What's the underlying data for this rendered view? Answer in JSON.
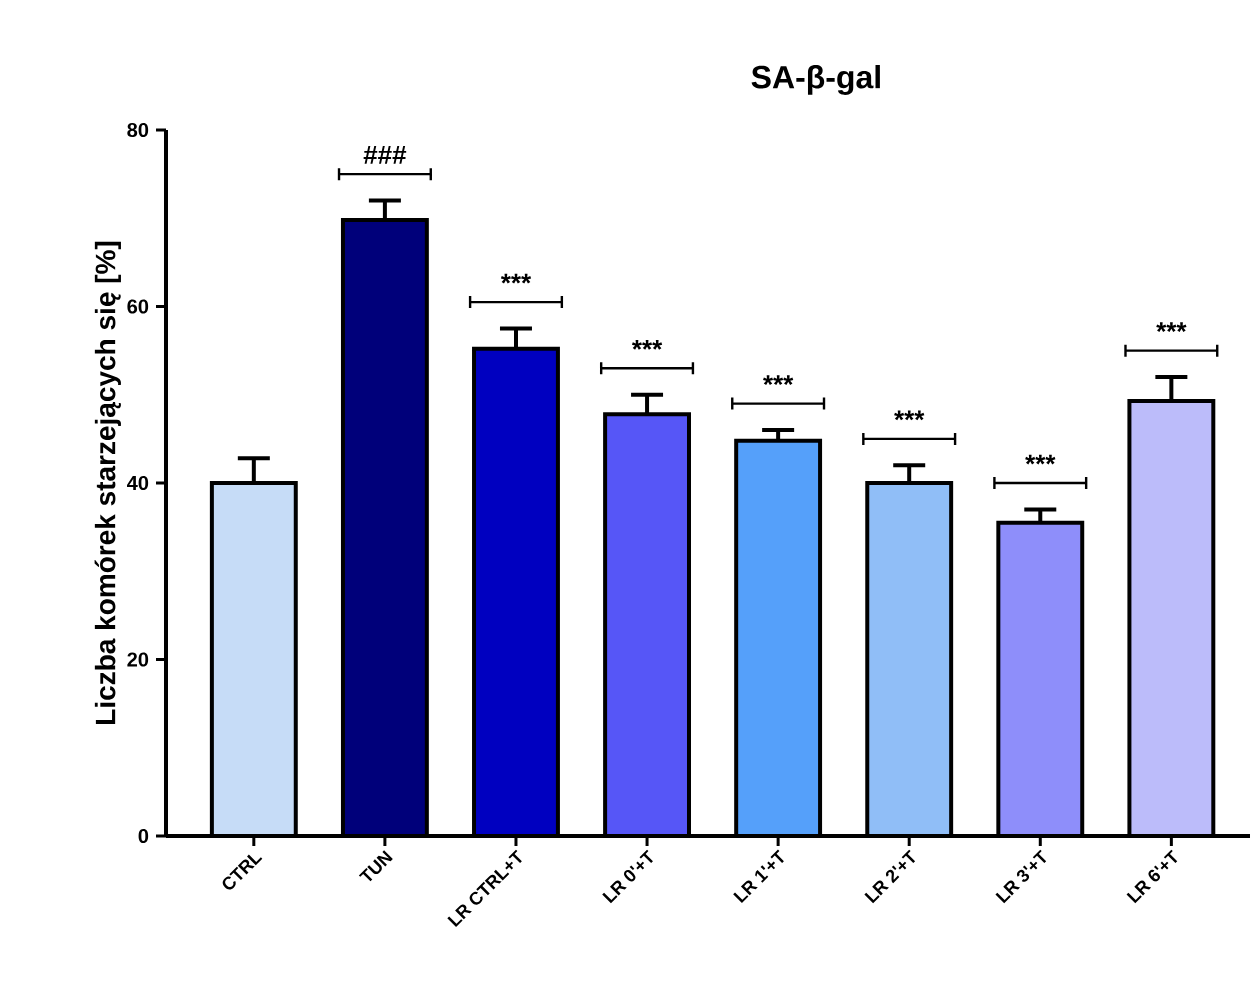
{
  "chart_data": {
    "type": "bar",
    "title": "SA-β-gal",
    "ylabel": "Liczba komórek starzejących się [%]",
    "categories": [
      "CTRL",
      "TUN",
      "LR CTRL+T",
      "LR 0'+T",
      "LR 1'+T",
      "LR 2'+T",
      "LR 3'+T",
      "LR 6'+T"
    ],
    "values": [
      40,
      69.8,
      55.2,
      47.8,
      44.8,
      40,
      35.5,
      49.3
    ],
    "errors": [
      [
        40,
        42.8
      ],
      [
        69.8,
        72
      ],
      [
        55.2,
        57.5
      ],
      [
        47.8,
        50
      ],
      [
        44.8,
        46
      ],
      [
        40,
        42
      ],
      [
        35.5,
        37
      ],
      [
        49.3,
        52
      ]
    ],
    "colors": [
      "#c6dcf7",
      "#00007a",
      "#0000c0",
      "#5656f7",
      "#55a0fa",
      "#90bef7",
      "#8e8efa",
      "#bcbcfa"
    ],
    "ylim": [
      0,
      80
    ],
    "yticks": [
      0,
      20,
      40,
      60,
      80
    ],
    "annotations": [
      "###",
      "***",
      "***",
      "***",
      "***",
      "***",
      "***"
    ]
  }
}
